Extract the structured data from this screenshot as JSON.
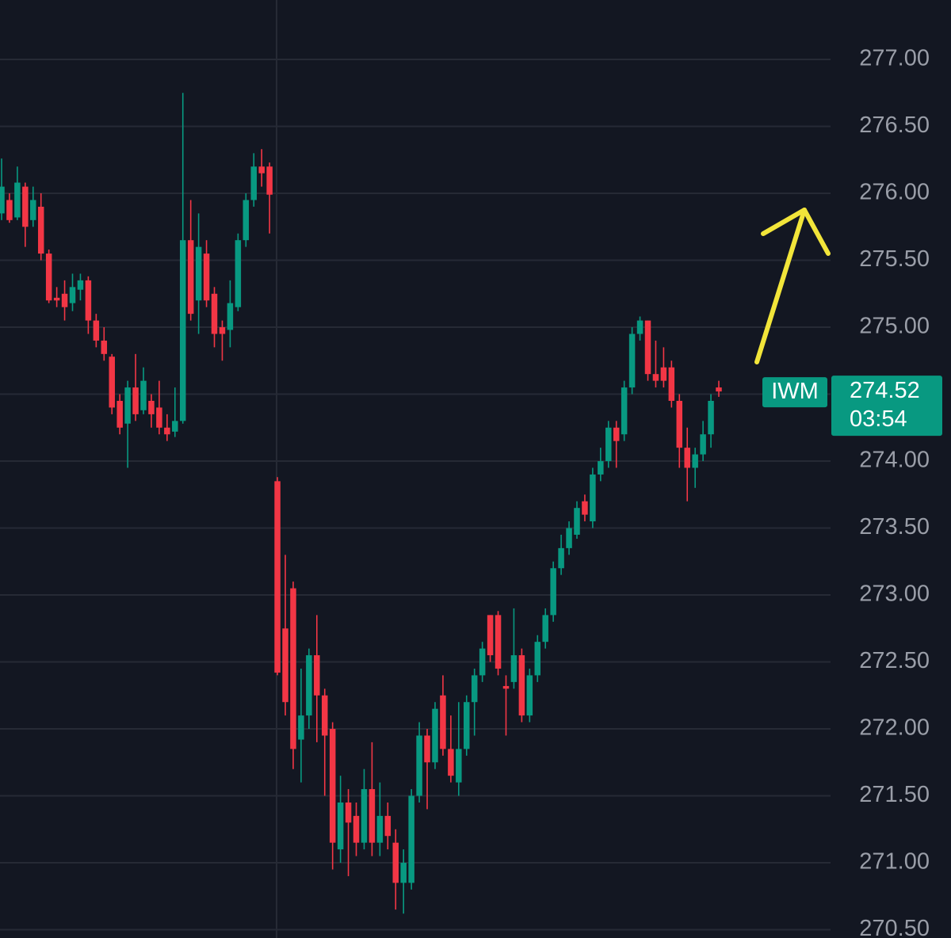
{
  "chart_data": {
    "type": "candlestick",
    "symbol": "IWM",
    "last_price": 274.52,
    "countdown": "03:54",
    "up_color": "#089981",
    "down_color": "#f23645",
    "grid": true,
    "ylim": [
      270.438,
      277.444
    ],
    "yticks": [
      {
        "value": 270.5,
        "label": "270.50"
      },
      {
        "value": 271,
        "label": "271.00"
      },
      {
        "value": 271.5,
        "label": "271.50"
      },
      {
        "value": 272,
        "label": "272.00"
      },
      {
        "value": 272.5,
        "label": "272.50"
      },
      {
        "value": 273,
        "label": "273.00"
      },
      {
        "value": 273.5,
        "label": "273.50"
      },
      {
        "value": 274,
        "label": "274.00"
      },
      {
        "value": 274.5,
        "label": "274.50"
      },
      {
        "value": 275,
        "label": "275.00"
      },
      {
        "value": 275.5,
        "label": "275.50"
      },
      {
        "value": 276,
        "label": "276.00"
      },
      {
        "value": 276.5,
        "label": "276.50"
      },
      {
        "value": 277,
        "label": "277.00"
      }
    ],
    "open": [
      275.85,
      275.95,
      275.82,
      276.05,
      275.8,
      275.9,
      275.55,
      275.22,
      275.25,
      275.18,
      275.28,
      275.35,
      275.05,
      274.9,
      274.78,
      274.45,
      274.28,
      274.55,
      274.38,
      274.45,
      274.4,
      274.25,
      274.22,
      274.3,
      275.65,
      275.2,
      275.55,
      275.25,
      275.0,
      274.98,
      275.15,
      275.65,
      275.95,
      276.2,
      276.2,
      273.85,
      272.75,
      273.05,
      271.92,
      272.1,
      272.55,
      272.25,
      272.0,
      271.1,
      271.45,
      271.35,
      271.15,
      271.55,
      271.15,
      271.35,
      271.15,
      270.85,
      270.85,
      271.5,
      271.95,
      271.75,
      272.25,
      271.85,
      271.6,
      271.85,
      272.2,
      272.4,
      272.85,
      272.85,
      272.32,
      272.35,
      272.55,
      272.1,
      272.4,
      272.65,
      272.85,
      273.2,
      273.35,
      273.45,
      273.7,
      273.55,
      273.9,
      274.0,
      274.25,
      274.2,
      274.55,
      274.95,
      275.05,
      274.65,
      274.7,
      274.7,
      274.45,
      274.1,
      273.95,
      274.05,
      274.2,
      274.55
    ],
    "high": [
      276.26,
      276.0,
      276.2,
      276.08,
      276.05,
      276.0,
      275.58,
      275.3,
      275.35,
      275.4,
      275.4,
      275.38,
      275.1,
      275.0,
      274.8,
      274.5,
      274.6,
      274.8,
      274.7,
      274.5,
      274.6,
      274.35,
      274.55,
      276.75,
      275.95,
      275.85,
      275.65,
      275.3,
      275.05,
      275.35,
      275.7,
      276.0,
      276.3,
      276.33,
      276.23,
      273.88,
      273.3,
      273.1,
      272.45,
      272.6,
      272.85,
      272.3,
      272.05,
      271.65,
      271.55,
      271.45,
      271.7,
      271.9,
      271.6,
      271.45,
      271.25,
      271.1,
      271.55,
      272.05,
      272.0,
      272.2,
      272.4,
      272.1,
      272.2,
      272.25,
      272.45,
      272.65,
      272.85,
      272.88,
      272.4,
      272.9,
      272.6,
      272.45,
      272.7,
      272.9,
      273.25,
      273.45,
      273.55,
      273.7,
      273.75,
      273.95,
      274.1,
      274.3,
      274.3,
      274.6,
      275.0,
      275.08,
      275.05,
      274.9,
      274.85,
      274.75,
      274.5,
      274.25,
      274.1,
      274.3,
      274.5,
      274.6
    ],
    "low": [
      275.8,
      275.78,
      275.8,
      275.6,
      275.75,
      275.5,
      275.18,
      275.15,
      275.05,
      275.12,
      275.2,
      274.95,
      274.85,
      274.75,
      274.35,
      274.2,
      273.95,
      274.3,
      274.35,
      274.25,
      274.2,
      274.15,
      274.18,
      274.28,
      275.05,
      274.95,
      275.15,
      274.85,
      274.75,
      274.85,
      275.12,
      275.6,
      275.9,
      276.05,
      275.7,
      272.4,
      272.1,
      271.7,
      271.6,
      272.0,
      271.9,
      271.5,
      270.95,
      271.0,
      270.9,
      271.05,
      271.1,
      271.05,
      271.05,
      271.1,
      270.65,
      270.62,
      270.8,
      271.45,
      271.4,
      271.7,
      271.8,
      271.6,
      271.5,
      271.8,
      271.95,
      272.35,
      272.5,
      272.4,
      271.95,
      272.3,
      272.05,
      272.05,
      272.35,
      272.6,
      272.8,
      273.15,
      273.3,
      273.42,
      273.55,
      273.5,
      273.85,
      273.95,
      273.95,
      274.15,
      274.5,
      274.9,
      274.6,
      274.55,
      274.55,
      274.4,
      273.95,
      273.7,
      273.8,
      274.0,
      274.1,
      274.48
    ],
    "close": [
      276.05,
      275.8,
      276.08,
      275.75,
      275.95,
      275.55,
      275.2,
      275.2,
      275.15,
      275.3,
      275.35,
      275.05,
      274.9,
      274.8,
      274.4,
      274.25,
      274.55,
      274.35,
      274.6,
      274.35,
      274.25,
      274.2,
      274.3,
      275.65,
      275.1,
      275.6,
      275.2,
      274.95,
      274.95,
      275.18,
      275.65,
      275.95,
      276.2,
      276.15,
      275.99,
      272.42,
      272.2,
      271.85,
      272.1,
      272.55,
      272.25,
      271.95,
      271.15,
      271.45,
      271.3,
      271.15,
      271.55,
      271.15,
      271.35,
      271.2,
      270.85,
      271.0,
      271.5,
      271.95,
      271.75,
      272.15,
      271.85,
      271.65,
      271.85,
      272.2,
      272.4,
      272.6,
      272.55,
      272.45,
      272.3,
      272.55,
      272.1,
      272.4,
      272.65,
      272.85,
      273.2,
      273.35,
      273.5,
      273.65,
      273.6,
      273.9,
      274.0,
      274.25,
      274.15,
      274.55,
      274.95,
      275.05,
      274.65,
      274.6,
      274.6,
      274.45,
      274.1,
      273.95,
      274.05,
      274.2,
      274.45,
      274.52
    ]
  }
}
